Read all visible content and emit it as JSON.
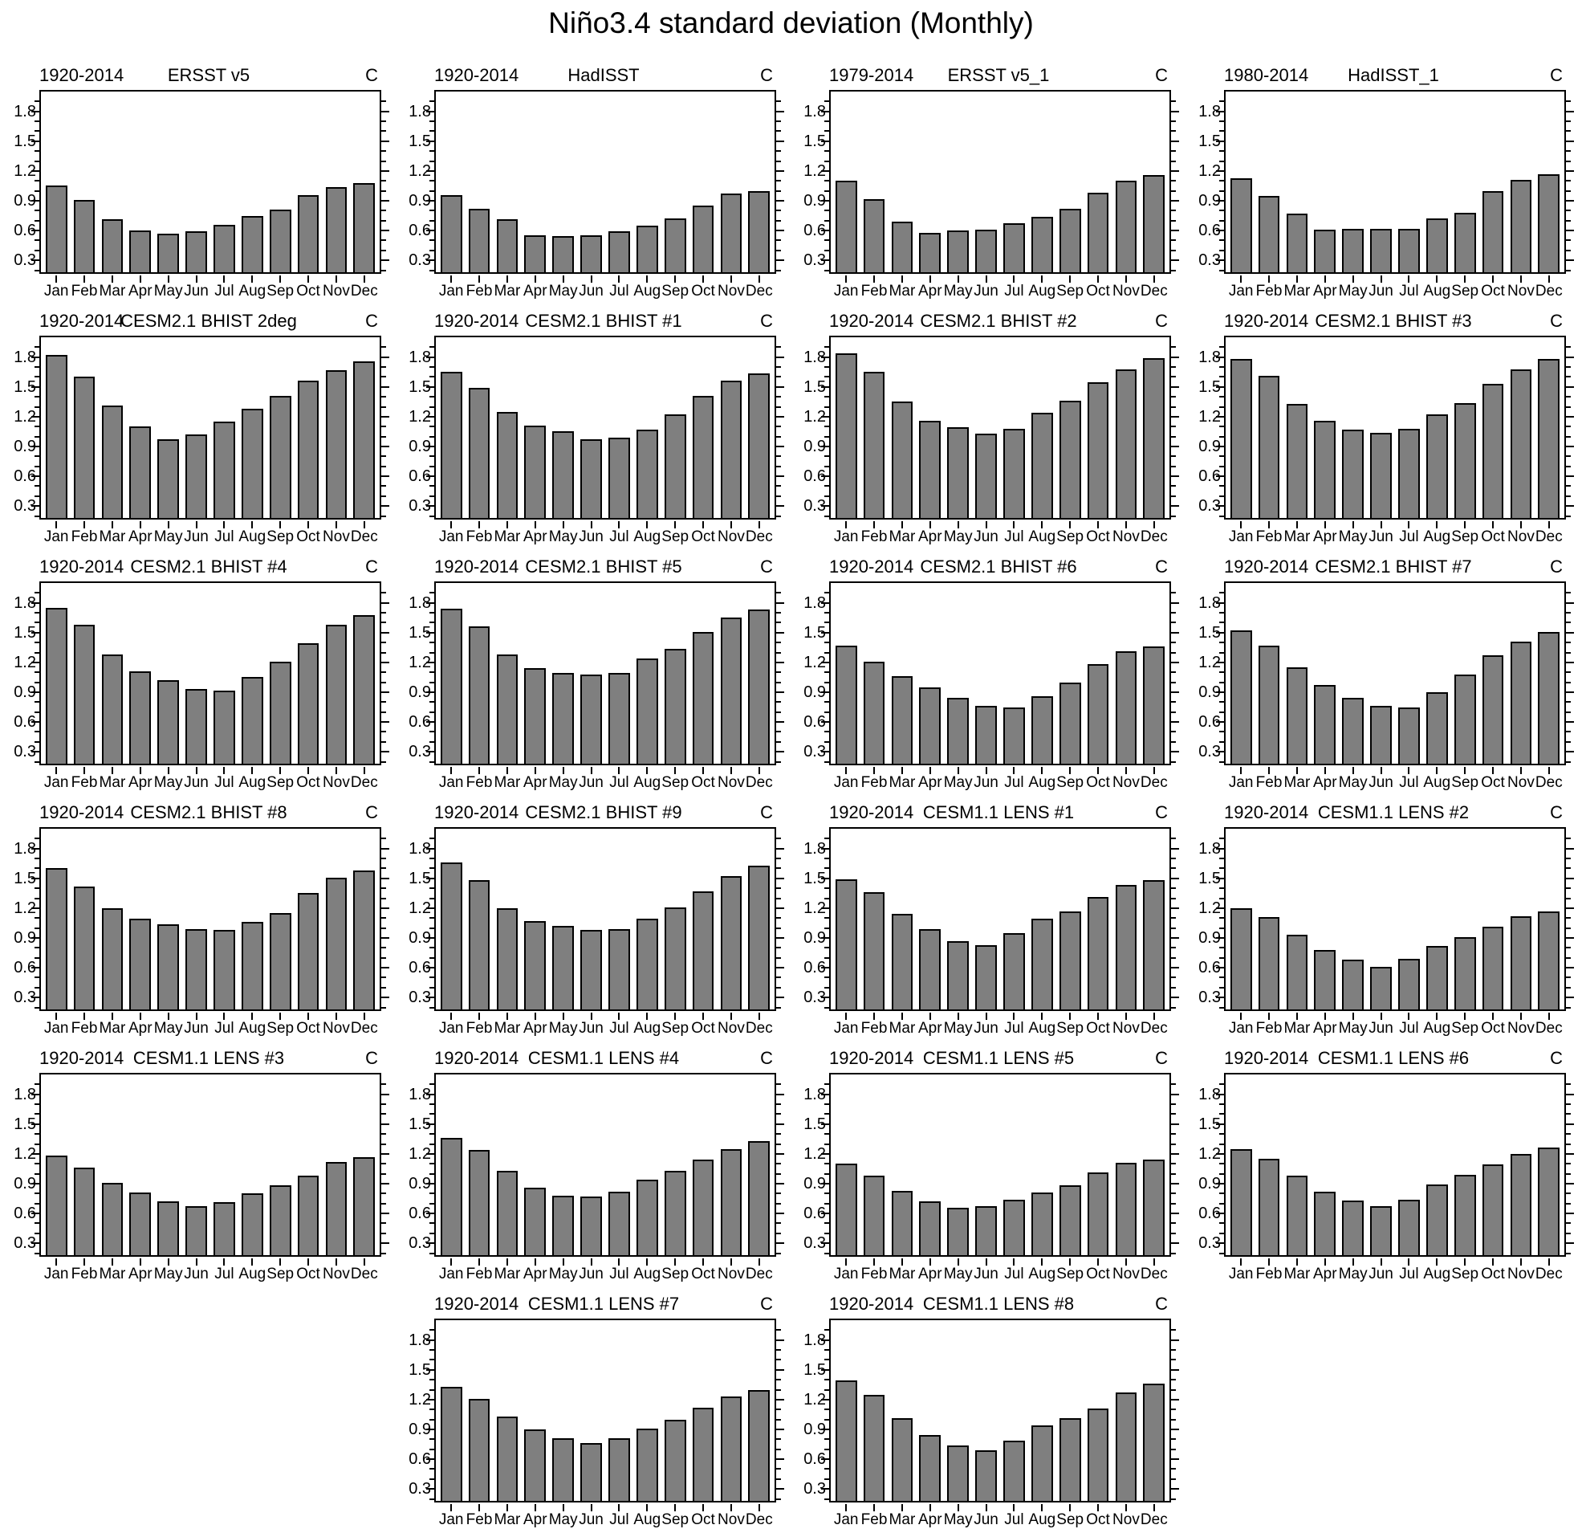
{
  "title": "Niño3.4 standard deviation (Monthly)",
  "months": [
    "Jan",
    "Feb",
    "Mar",
    "Apr",
    "May",
    "Jun",
    "Jul",
    "Aug",
    "Sep",
    "Oct",
    "Nov",
    "Dec"
  ],
  "y_axis": {
    "tick_labels": [
      "0.3",
      "0.6",
      "0.9",
      "1.2",
      "1.5",
      "1.8"
    ],
    "tick_values": [
      0.3,
      0.6,
      0.9,
      1.2,
      1.5,
      1.8
    ],
    "minor_step": 0.1,
    "min": 0.18,
    "max": 2.0
  },
  "colors": {
    "bar_fill": "#7f7f7f",
    "bar_border": "#000000",
    "axis": "#000000"
  },
  "chart_data": [
    {
      "type": "bar",
      "period": "1920-2014",
      "title": "ERSST v5",
      "unit": "C",
      "values": [
        1.05,
        0.91,
        0.71,
        0.6,
        0.57,
        0.59,
        0.66,
        0.75,
        0.81,
        0.96,
        1.04,
        1.08
      ]
    },
    {
      "type": "bar",
      "period": "1920-2014",
      "title": "HadISST",
      "unit": "C",
      "values": [
        0.96,
        0.82,
        0.71,
        0.55,
        0.54,
        0.55,
        0.59,
        0.65,
        0.72,
        0.85,
        0.97,
        1.0
      ]
    },
    {
      "type": "bar",
      "period": "1979-2014",
      "title": "ERSST v5_1",
      "unit": "C",
      "values": [
        1.1,
        0.92,
        0.69,
        0.58,
        0.6,
        0.61,
        0.67,
        0.74,
        0.82,
        0.98,
        1.1,
        1.16
      ]
    },
    {
      "type": "bar",
      "period": "1980-2014",
      "title": "HadISST_1",
      "unit": "C",
      "values": [
        1.13,
        0.95,
        0.77,
        0.61,
        0.62,
        0.62,
        0.62,
        0.72,
        0.78,
        1.0,
        1.11,
        1.17
      ]
    },
    {
      "type": "bar",
      "period": "1920-2014",
      "title": "CESM2.1 BHIST 2deg",
      "unit": "C",
      "values": [
        1.82,
        1.6,
        1.31,
        1.1,
        0.97,
        1.02,
        1.15,
        1.28,
        1.41,
        1.56,
        1.67,
        1.76
      ]
    },
    {
      "type": "bar",
      "period": "1920-2014",
      "title": "CESM2.1 BHIST #1",
      "unit": "C",
      "values": [
        1.65,
        1.49,
        1.25,
        1.11,
        1.05,
        0.97,
        0.99,
        1.07,
        1.22,
        1.41,
        1.56,
        1.64
      ]
    },
    {
      "type": "bar",
      "period": "1920-2014",
      "title": "CESM2.1 BHIST #2",
      "unit": "C",
      "values": [
        1.84,
        1.65,
        1.35,
        1.16,
        1.09,
        1.03,
        1.08,
        1.24,
        1.36,
        1.55,
        1.68,
        1.79
      ]
    },
    {
      "type": "bar",
      "period": "1920-2014",
      "title": "CESM2.1 BHIST #3",
      "unit": "C",
      "values": [
        1.78,
        1.61,
        1.33,
        1.16,
        1.07,
        1.04,
        1.08,
        1.22,
        1.34,
        1.53,
        1.68,
        1.78
      ]
    },
    {
      "type": "bar",
      "period": "1920-2014",
      "title": "CESM2.1 BHIST #4",
      "unit": "C",
      "values": [
        1.75,
        1.58,
        1.28,
        1.11,
        1.02,
        0.93,
        0.92,
        1.05,
        1.21,
        1.39,
        1.58,
        1.68
      ]
    },
    {
      "type": "bar",
      "period": "1920-2014",
      "title": "CESM2.1 BHIST #5",
      "unit": "C",
      "values": [
        1.74,
        1.56,
        1.28,
        1.14,
        1.09,
        1.08,
        1.09,
        1.24,
        1.34,
        1.51,
        1.65,
        1.73
      ]
    },
    {
      "type": "bar",
      "period": "1920-2014",
      "title": "CESM2.1 BHIST #6",
      "unit": "C",
      "values": [
        1.37,
        1.21,
        1.06,
        0.95,
        0.84,
        0.76,
        0.75,
        0.86,
        1.0,
        1.18,
        1.31,
        1.36
      ]
    },
    {
      "type": "bar",
      "period": "1920-2014",
      "title": "CESM2.1 BHIST #7",
      "unit": "C",
      "values": [
        1.52,
        1.37,
        1.15,
        0.97,
        0.84,
        0.76,
        0.75,
        0.9,
        1.08,
        1.27,
        1.41,
        1.51
      ]
    },
    {
      "type": "bar",
      "period": "1920-2014",
      "title": "CESM2.1 BHIST #8",
      "unit": "C",
      "values": [
        1.6,
        1.42,
        1.2,
        1.09,
        1.04,
        0.99,
        0.98,
        1.06,
        1.15,
        1.35,
        1.51,
        1.58
      ]
    },
    {
      "type": "bar",
      "period": "1920-2014",
      "title": "CESM2.1 BHIST #9",
      "unit": "C",
      "values": [
        1.66,
        1.48,
        1.2,
        1.07,
        1.02,
        0.98,
        0.99,
        1.09,
        1.21,
        1.37,
        1.52,
        1.63
      ]
    },
    {
      "type": "bar",
      "period": "1920-2014",
      "title": "CESM1.1 LENS #1",
      "unit": "C",
      "values": [
        1.49,
        1.36,
        1.14,
        0.99,
        0.87,
        0.83,
        0.95,
        1.09,
        1.17,
        1.31,
        1.43,
        1.48
      ]
    },
    {
      "type": "bar",
      "period": "1920-2014",
      "title": "CESM1.1 LENS #2",
      "unit": "C",
      "values": [
        1.2,
        1.11,
        0.93,
        0.78,
        0.68,
        0.61,
        0.69,
        0.82,
        0.91,
        1.01,
        1.12,
        1.17
      ]
    },
    {
      "type": "bar",
      "period": "1920-2014",
      "title": "CESM1.1 LENS #3",
      "unit": "C",
      "values": [
        1.18,
        1.06,
        0.91,
        0.81,
        0.72,
        0.67,
        0.71,
        0.8,
        0.88,
        0.98,
        1.12,
        1.17
      ]
    },
    {
      "type": "bar",
      "period": "1920-2014",
      "title": "CESM1.1 LENS #4",
      "unit": "C",
      "values": [
        1.36,
        1.24,
        1.03,
        0.86,
        0.78,
        0.77,
        0.82,
        0.94,
        1.03,
        1.14,
        1.25,
        1.33
      ]
    },
    {
      "type": "bar",
      "period": "1920-2014",
      "title": "CESM1.1 LENS #5",
      "unit": "C",
      "values": [
        1.1,
        0.98,
        0.83,
        0.72,
        0.66,
        0.67,
        0.74,
        0.81,
        0.88,
        1.01,
        1.11,
        1.14
      ]
    },
    {
      "type": "bar",
      "period": "1920-2014",
      "title": "CESM1.1 LENS #6",
      "unit": "C",
      "values": [
        1.25,
        1.15,
        0.98,
        0.82,
        0.73,
        0.67,
        0.74,
        0.89,
        0.99,
        1.09,
        1.2,
        1.26
      ]
    },
    {
      "type": "bar",
      "period": "1920-2014",
      "title": "CESM1.1 LENS #7",
      "unit": "C",
      "values": [
        1.33,
        1.21,
        1.03,
        0.9,
        0.81,
        0.76,
        0.81,
        0.91,
        1.0,
        1.12,
        1.23,
        1.3
      ]
    },
    {
      "type": "bar",
      "period": "1920-2014",
      "title": "CESM1.1 LENS #8",
      "unit": "C",
      "values": [
        1.39,
        1.25,
        1.01,
        0.84,
        0.74,
        0.69,
        0.79,
        0.94,
        1.01,
        1.11,
        1.27,
        1.36
      ]
    }
  ]
}
